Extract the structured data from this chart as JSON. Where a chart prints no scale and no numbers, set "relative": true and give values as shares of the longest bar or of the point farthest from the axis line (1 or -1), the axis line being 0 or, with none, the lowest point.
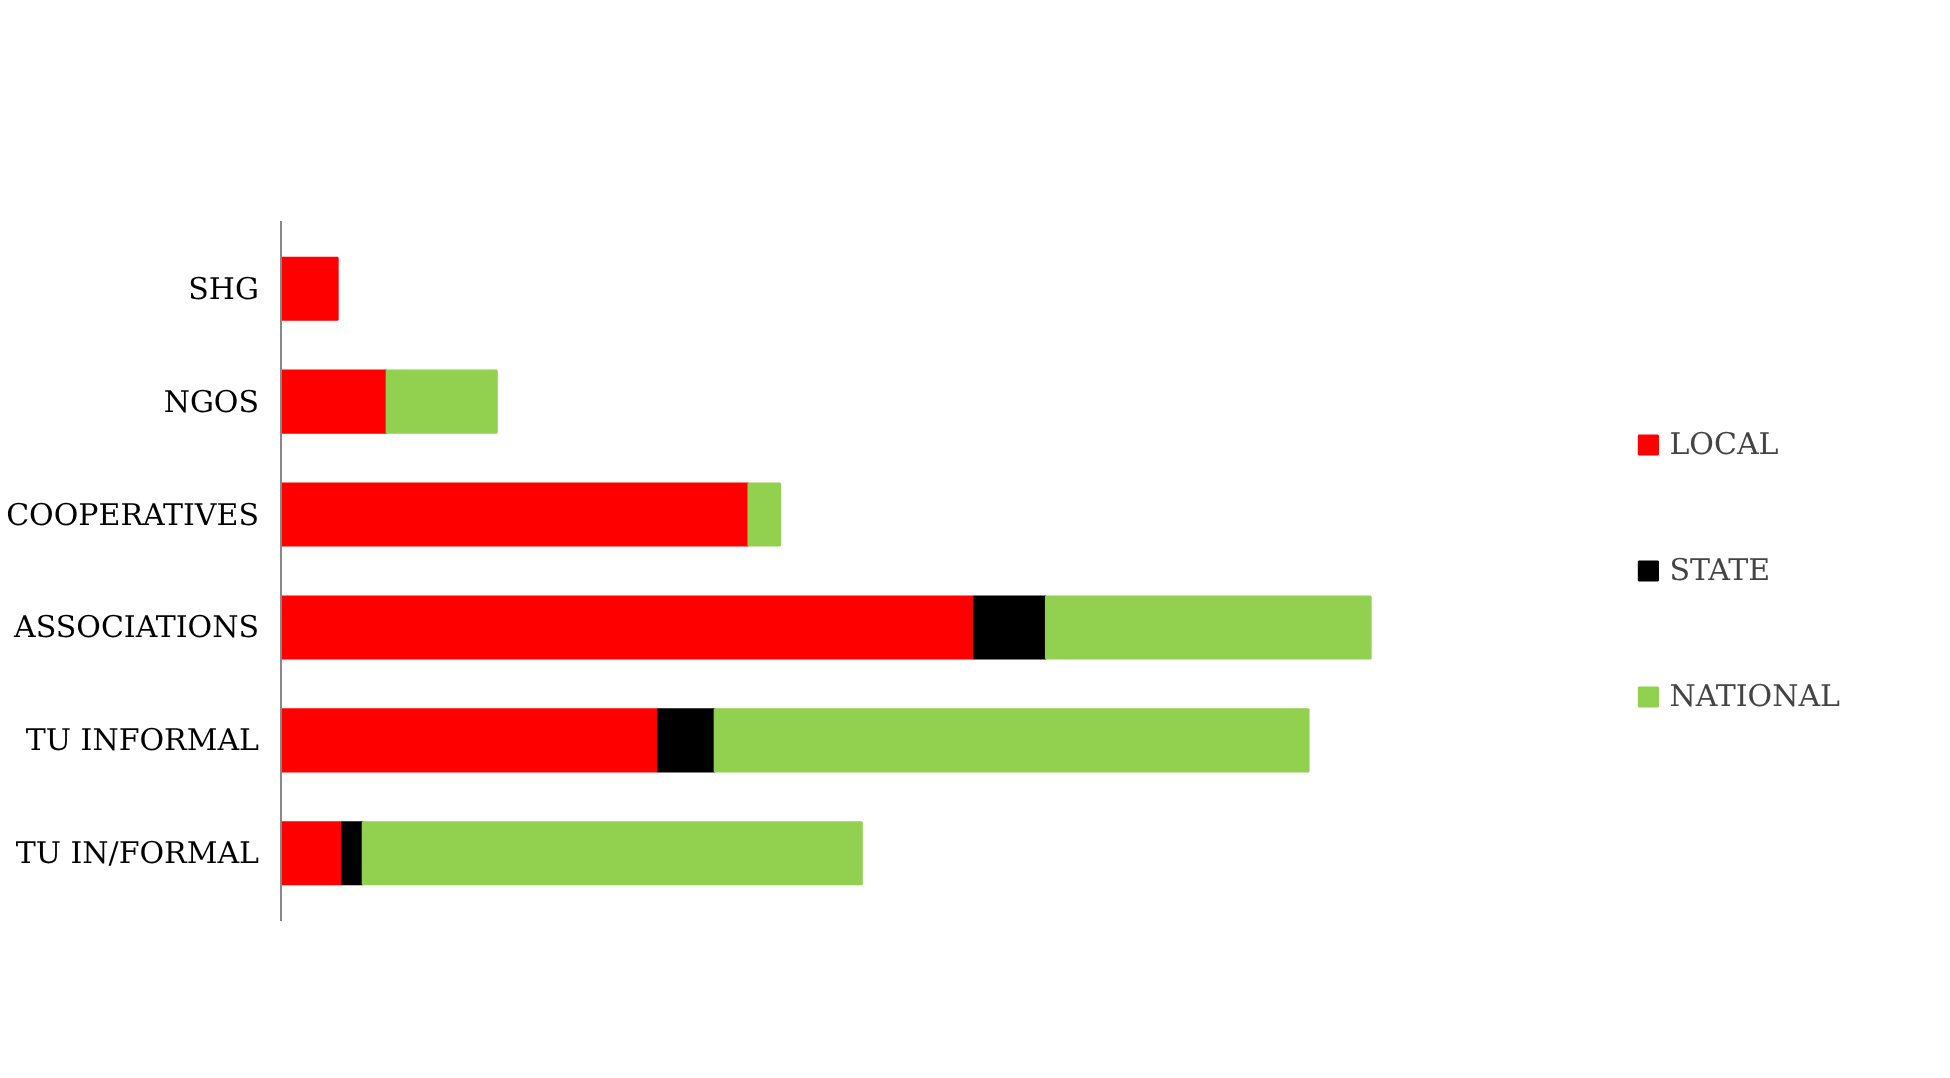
{
  "chart_data": {
    "type": "bar",
    "orientation": "horizontal",
    "stacked": true,
    "relative": true,
    "categories": [
      "SHG",
      "NGOS",
      "COOPERATIVES",
      "ASSOCIATIONS",
      "TU INFORMAL",
      "TU IN/FORMAL"
    ],
    "series": [
      {
        "name": "LOCAL",
        "color": "#ff0000",
        "values": [
          0.052,
          0.097,
          0.429,
          0.636,
          0.346,
          0.056
        ]
      },
      {
        "name": "STATE",
        "color": "#000000",
        "values": [
          0,
          null,
          0,
          0.066,
          0.052,
          0.019
        ]
      },
      {
        "name": "NATIONAL",
        "color": "#92d050",
        "values": [
          0,
          0.101,
          0.029,
          0.298,
          0.545,
          0.458
        ]
      }
    ],
    "grid": false,
    "legend": "right"
  }
}
